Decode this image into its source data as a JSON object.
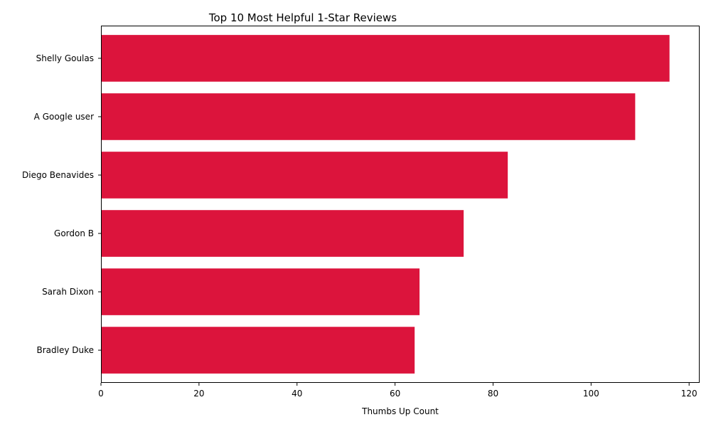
{
  "chart_data": {
    "type": "bar",
    "orientation": "horizontal",
    "title": "Top 10 Most Helpful 1-Star Reviews",
    "xlabel": "Thumbs Up Count",
    "ylabel": "",
    "categories": [
      "Shelly Goulas",
      "A Google user",
      "Diego Benavides",
      "Gordon B",
      "Sarah Dixon",
      "Bradley Duke"
    ],
    "values": [
      116,
      109,
      83,
      74,
      65,
      64
    ],
    "xlim": [
      0,
      122
    ],
    "xticks": [
      0,
      20,
      40,
      60,
      80,
      100,
      120
    ],
    "bar_color": "#dc143c",
    "grid": false,
    "legend": "none"
  }
}
